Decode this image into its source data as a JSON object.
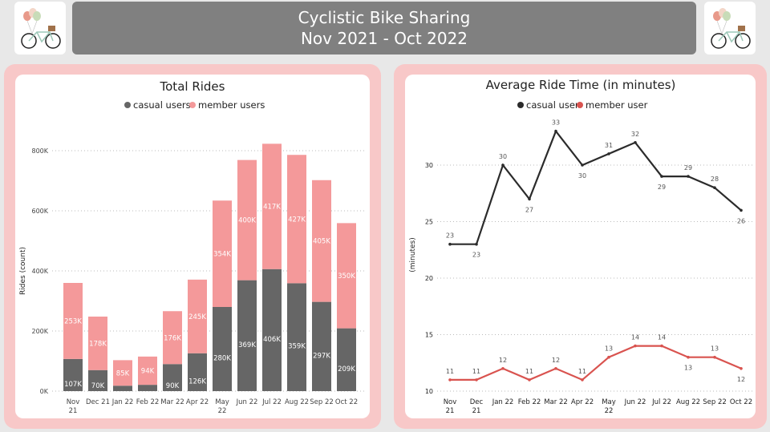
{
  "header": {
    "title": "Cyclistic Bike Sharing",
    "subtitle": "Nov 2021 - Oct 2022"
  },
  "colors": {
    "casual": "#666666",
    "member": "#f4999a",
    "casual_line": "#2b2b2b",
    "member_line": "#d9534f",
    "panel": "#f8c8c8",
    "header": "#808080"
  },
  "chart_data": [
    {
      "type": "bar",
      "stacked": true,
      "title": "Total Rides",
      "ylabel": "Rides (count)",
      "xlabel": "",
      "ylim": [
        0,
        800000
      ],
      "yticks": [
        "0K",
        "200K",
        "400K",
        "600K",
        "800K"
      ],
      "legend_position": "top-center",
      "grid": true,
      "categories": [
        [
          "Nov",
          "21"
        ],
        [
          "Dec 21"
        ],
        [
          "Jan 22"
        ],
        [
          "Feb 22"
        ],
        [
          "Mar 22"
        ],
        [
          "Apr 22"
        ],
        [
          "May",
          "22"
        ],
        [
          "Jun 22"
        ],
        [
          "Jul 22"
        ],
        [
          "Aug 22"
        ],
        [
          "Sep 22"
        ],
        [
          "Oct 22"
        ]
      ],
      "series": [
        {
          "name": "casual users",
          "values": [
            107,
            70,
            18,
            21,
            90,
            126,
            280,
            369,
            406,
            359,
            297,
            209
          ],
          "labels": [
            "107K",
            "70K",
            "",
            "",
            "90K",
            "126K",
            "280K",
            "369K",
            "406K",
            "359K",
            "297K",
            "209K"
          ]
        },
        {
          "name": "member users",
          "values": [
            253,
            178,
            85,
            94,
            176,
            245,
            354,
            400,
            417,
            427,
            405,
            350
          ],
          "labels": [
            "253K",
            "178K",
            "85K",
            "94K",
            "176K",
            "245K",
            "354K",
            "400K",
            "417K",
            "427K",
            "405K",
            "350K"
          ]
        }
      ]
    },
    {
      "type": "line",
      "title": "Average Ride Time (in minutes)",
      "ylabel": "(minutes)",
      "xlabel": "",
      "ylim": [
        10,
        33
      ],
      "yticks": [
        "10",
        "15",
        "20",
        "25",
        "30"
      ],
      "legend_position": "top-center",
      "grid": true,
      "categories": [
        [
          "Nov",
          "21"
        ],
        [
          "Dec",
          "21"
        ],
        [
          "Jan 22"
        ],
        [
          "Feb 22"
        ],
        [
          "Mar 22"
        ],
        [
          "Apr 22"
        ],
        [
          "May",
          "22"
        ],
        [
          "Jun 22"
        ],
        [
          "Jul 22"
        ],
        [
          "Aug 22"
        ],
        [
          "Sep 22"
        ],
        [
          "Oct 22"
        ]
      ],
      "series": [
        {
          "name": "casual user",
          "values": [
            23,
            23,
            30,
            27,
            33,
            30,
            31,
            32,
            29,
            29,
            28,
            26
          ],
          "label_pos": [
            "a",
            "b",
            "a",
            "b",
            "a",
            "b",
            "a",
            "a",
            "b",
            "a",
            "a",
            "b"
          ]
        },
        {
          "name": "member user",
          "values": [
            11,
            11,
            12,
            11,
            12,
            11,
            13,
            14,
            14,
            13,
            13,
            12
          ],
          "label_pos": [
            "a",
            "a",
            "a",
            "a",
            "a",
            "a",
            "a",
            "a",
            "a",
            "b",
            "a",
            "b"
          ]
        }
      ]
    }
  ]
}
